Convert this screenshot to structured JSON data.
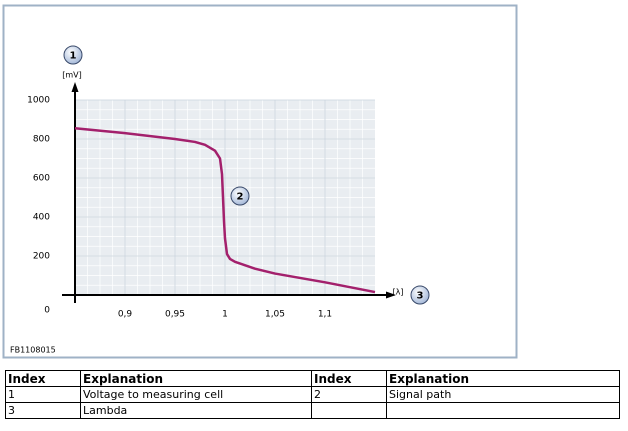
{
  "chart_data": {
    "type": "line",
    "y_unit": "[mV]",
    "x_unit": "[λ]",
    "annotations": [
      "1",
      "2",
      "3"
    ],
    "source": "FB1108015",
    "x": [
      0.85,
      0.9,
      0.95,
      0.97,
      0.98,
      0.99,
      0.995,
      0.997,
      0.998,
      0.999,
      1.0,
      1.002,
      1.005,
      1.01,
      1.03,
      1.05,
      1.1,
      1.15
    ],
    "values": [
      855,
      830,
      800,
      785,
      770,
      740,
      700,
      620,
      500,
      380,
      290,
      210,
      185,
      170,
      135,
      110,
      65,
      15
    ],
    "color": "#a3206c",
    "xlim": [
      0.85,
      1.15
    ],
    "xticks": [
      {
        "value": 0.9,
        "label": "0,9"
      },
      {
        "value": 0.95,
        "label": "0,95"
      },
      1,
      {
        "value": 1.05,
        "label": "1,05"
      },
      {
        "value": 1.1,
        "label": "1,1"
      }
    ],
    "ylim": [
      0,
      1000
    ],
    "yticks": [
      0,
      200,
      400,
      600,
      800,
      1000
    ],
    "grid": true
  },
  "table": {
    "header": [
      "Index",
      "Explanation",
      "Index",
      "Explanation"
    ],
    "rows": [
      [
        "1",
        "Voltage to measuring cell",
        "2",
        "Signal path"
      ],
      [
        "3",
        "Lambda"
      ]
    ]
  }
}
